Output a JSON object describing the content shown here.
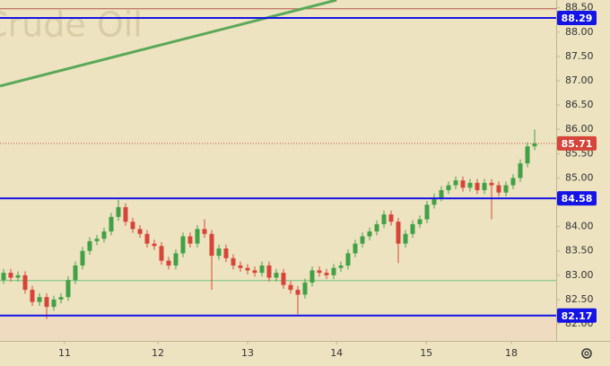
{
  "chart_data": {
    "type": "candlestick",
    "watermark": "Crude Oil",
    "colors": {
      "up": "#43a047",
      "down": "#d6453a",
      "background": "#ede3c0",
      "axis_text": "#333333"
    },
    "xlim": [
      -0.5,
      77
    ],
    "xticks": [
      {
        "value": 8.5,
        "label": "11"
      },
      {
        "value": 21.5,
        "label": "12"
      },
      {
        "value": 34,
        "label": "13"
      },
      {
        "value": 46.4,
        "label": "14"
      },
      {
        "value": 58.9,
        "label": "15"
      },
      {
        "value": 70.75,
        "label": "18"
      }
    ],
    "ylim": [
      81.65,
      88.66
    ],
    "yticks": [
      {
        "value": 82,
        "label": "82.00"
      },
      {
        "value": 82.5,
        "label": "82.50"
      },
      {
        "value": 83,
        "label": "83.00"
      },
      {
        "value": 83.5,
        "label": "83.50"
      },
      {
        "value": 84,
        "label": "84.00"
      },
      {
        "value": 84.5,
        "label": "84.50"
      },
      {
        "value": 85,
        "label": "85.00"
      },
      {
        "value": 85.5,
        "label": "85.50"
      },
      {
        "value": 86,
        "label": "86.00"
      },
      {
        "value": 86.5,
        "label": "86.50"
      },
      {
        "value": 87,
        "label": "87.00"
      },
      {
        "value": 87.5,
        "label": "87.50"
      },
      {
        "value": 88,
        "label": "88.00"
      },
      {
        "value": 88.5,
        "label": "88.50"
      }
    ],
    "open": [
      82.9,
      83.05,
      82.95,
      83.0,
      82.7,
      82.45,
      82.55,
      82.35,
      82.5,
      82.55,
      82.9,
      83.2,
      83.5,
      83.7,
      83.75,
      83.9,
      84.2,
      84.4,
      84.1,
      83.95,
      83.85,
      83.65,
      83.6,
      83.3,
      83.2,
      83.45,
      83.8,
      83.65,
      83.95,
      83.85,
      83.4,
      83.55,
      83.35,
      83.2,
      83.15,
      83.1,
      83.05,
      83.2,
      82.95,
      83.05,
      82.8,
      82.7,
      82.6,
      82.85,
      83.1,
      83.05,
      83.0,
      83.15,
      83.2,
      83.45,
      83.65,
      83.8,
      83.9,
      84.05,
      84.25,
      84.1,
      83.65,
      83.85,
      84.05,
      84.15,
      84.45,
      84.6,
      84.75,
      84.85,
      84.95,
      84.8,
      84.9,
      84.75,
      84.9,
      84.85,
      84.7,
      84.85,
      85.0,
      85.3,
      85.65
    ],
    "high": [
      83.13,
      83.13,
      83.08,
      83.08,
      82.78,
      82.63,
      82.63,
      82.58,
      82.63,
      82.98,
      83.28,
      83.58,
      83.78,
      83.83,
      83.98,
      84.28,
      84.55,
      84.48,
      84.18,
      84.03,
      83.93,
      83.73,
      83.68,
      83.38,
      83.53,
      83.88,
      83.88,
      84.03,
      84.15,
      83.93,
      83.63,
      83.63,
      83.43,
      83.28,
      83.23,
      83.18,
      83.28,
      83.28,
      83.13,
      83.13,
      82.88,
      82.78,
      82.93,
      83.18,
      83.18,
      83.13,
      83.23,
      83.28,
      83.53,
      83.73,
      83.88,
      83.98,
      84.13,
      84.33,
      84.33,
      84.18,
      83.93,
      84.13,
      84.23,
      84.53,
      84.68,
      84.83,
      84.93,
      85.03,
      85.03,
      84.98,
      84.98,
      84.98,
      84.98,
      84.93,
      84.93,
      85.08,
      85.38,
      85.73,
      86.0
    ],
    "low": [
      82.82,
      82.87,
      82.87,
      82.62,
      82.37,
      82.37,
      82.1,
      82.27,
      82.42,
      82.47,
      82.82,
      83.12,
      83.42,
      83.62,
      83.67,
      83.82,
      84.12,
      84.02,
      83.87,
      83.77,
      83.57,
      83.52,
      83.22,
      83.12,
      83.12,
      83.37,
      83.57,
      83.57,
      83.77,
      82.7,
      83.32,
      83.27,
      83.12,
      83.07,
      83.02,
      82.97,
      82.97,
      82.87,
      82.87,
      82.72,
      82.62,
      82.2,
      82.52,
      82.77,
      82.97,
      82.92,
      82.92,
      83.07,
      83.12,
      83.37,
      83.57,
      83.72,
      83.82,
      83.97,
      84.02,
      83.25,
      83.57,
      83.77,
      83.97,
      84.07,
      84.37,
      84.52,
      84.67,
      84.77,
      84.72,
      84.72,
      84.67,
      84.67,
      84.15,
      84.62,
      84.62,
      84.77,
      84.92,
      85.22,
      85.57
    ],
    "close": [
      83.05,
      82.95,
      83.0,
      82.7,
      82.45,
      82.55,
      82.35,
      82.5,
      82.55,
      82.9,
      83.2,
      83.5,
      83.7,
      83.75,
      83.9,
      84.2,
      84.4,
      84.1,
      83.95,
      83.85,
      83.65,
      83.6,
      83.3,
      83.2,
      83.45,
      83.8,
      83.65,
      83.95,
      83.85,
      83.4,
      83.55,
      83.35,
      83.2,
      83.15,
      83.1,
      83.05,
      83.2,
      82.95,
      83.05,
      82.8,
      82.7,
      82.6,
      82.85,
      83.1,
      83.05,
      83.0,
      83.15,
      83.2,
      83.45,
      83.65,
      83.8,
      83.9,
      84.05,
      84.25,
      84.1,
      83.65,
      83.85,
      84.05,
      84.15,
      84.45,
      84.6,
      84.75,
      84.85,
      84.95,
      84.8,
      84.9,
      84.75,
      84.9,
      84.85,
      84.7,
      84.85,
      85.0,
      85.3,
      85.65,
      85.71
    ],
    "levels": [
      {
        "value": 88.29,
        "label": "88.29",
        "color": "#1414e6"
      },
      {
        "value": 84.58,
        "label": "84.58",
        "color": "#1414e6"
      },
      {
        "value": 82.17,
        "label": "82.17",
        "color": "#1414e6"
      }
    ],
    "last_price": {
      "value": 85.71,
      "label": "85.71",
      "color": "#d6453a"
    },
    "plain_lines": [
      {
        "value": 88.48,
        "color": "#b5594a"
      },
      {
        "value": 82.89,
        "color": "#6cc47a"
      }
    ],
    "trendline": {
      "x": [
        -0.5,
        46.4
      ],
      "y": [
        86.89,
        88.66
      ],
      "color": "#5aa85a"
    }
  }
}
